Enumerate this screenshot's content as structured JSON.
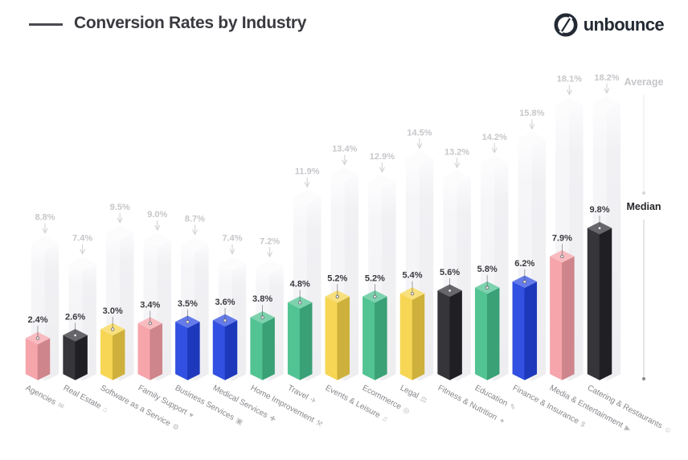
{
  "header": {
    "title": "Conversion Rates by Industry",
    "brand": "unbounce"
  },
  "legend": {
    "average": "Average",
    "median": "Median"
  },
  "chart_data": {
    "type": "bar",
    "title": "Conversion Rates by Industry",
    "subtitle": "",
    "unit": "%",
    "orientation": "vertical",
    "grid": false,
    "legend_position": "right",
    "ylim": [
      0,
      19
    ],
    "categories": [
      "Agencies",
      "Real Estate",
      "Software as a Service",
      "Family Support",
      "Business Services",
      "Medical Services",
      "Home Improvement",
      "Travel",
      "Events & Leisure",
      "Ecommerce",
      "Legal",
      "Fitness & Nutrition",
      "Education",
      "Finance & Insurance",
      "Media & Entertainment",
      "Catering & Restaurants"
    ],
    "category_icons": [
      {
        "name": "speech-bubble-icon",
        "glyph": "✉"
      },
      {
        "name": "house-icon",
        "glyph": "⌂"
      },
      {
        "name": "gear-icon",
        "glyph": "⚙"
      },
      {
        "name": "heart-icon",
        "glyph": "♥"
      },
      {
        "name": "briefcase-icon",
        "glyph": "▣"
      },
      {
        "name": "medical-cross-icon",
        "glyph": "✚"
      },
      {
        "name": "tools-icon",
        "glyph": "⚒"
      },
      {
        "name": "airplane-icon",
        "glyph": "✈"
      },
      {
        "name": "music-note-icon",
        "glyph": "♫"
      },
      {
        "name": "shopping-cart-icon",
        "glyph": "◎"
      },
      {
        "name": "scales-icon",
        "glyph": "⚖"
      },
      {
        "name": "dumbbell-icon",
        "glyph": "✦"
      },
      {
        "name": "book-icon",
        "glyph": "✎"
      },
      {
        "name": "dollar-icon",
        "glyph": "$"
      },
      {
        "name": "play-icon",
        "glyph": "▶"
      },
      {
        "name": "smiley-icon",
        "glyph": "☺"
      }
    ],
    "series": [
      {
        "name": "Average",
        "values": [
          8.8,
          7.4,
          9.5,
          9.0,
          8.7,
          7.4,
          7.2,
          11.9,
          13.4,
          12.9,
          14.5,
          13.2,
          14.2,
          15.8,
          18.1,
          18.2
        ]
      },
      {
        "name": "Median",
        "values": [
          2.4,
          2.6,
          3.0,
          3.4,
          3.5,
          3.6,
          3.8,
          4.8,
          5.2,
          5.2,
          5.4,
          5.6,
          5.8,
          6.2,
          7.9,
          9.8
        ]
      }
    ],
    "median_bar_colors": [
      "pink",
      "black",
      "yellow",
      "pink",
      "blue",
      "blue",
      "green",
      "green",
      "yellow",
      "green",
      "yellow",
      "black",
      "green",
      "blue",
      "pink",
      "black"
    ],
    "palette": {
      "pink": "#F59EA5",
      "black": "#26262B",
      "yellow": "#F5D347",
      "blue": "#2343DF",
      "green": "#45BE8B",
      "average_bar": "#F2F2F5",
      "average_text": "#C7C7CB",
      "median_text": "#3A3A3F",
      "category_text": "#85858A"
    }
  }
}
